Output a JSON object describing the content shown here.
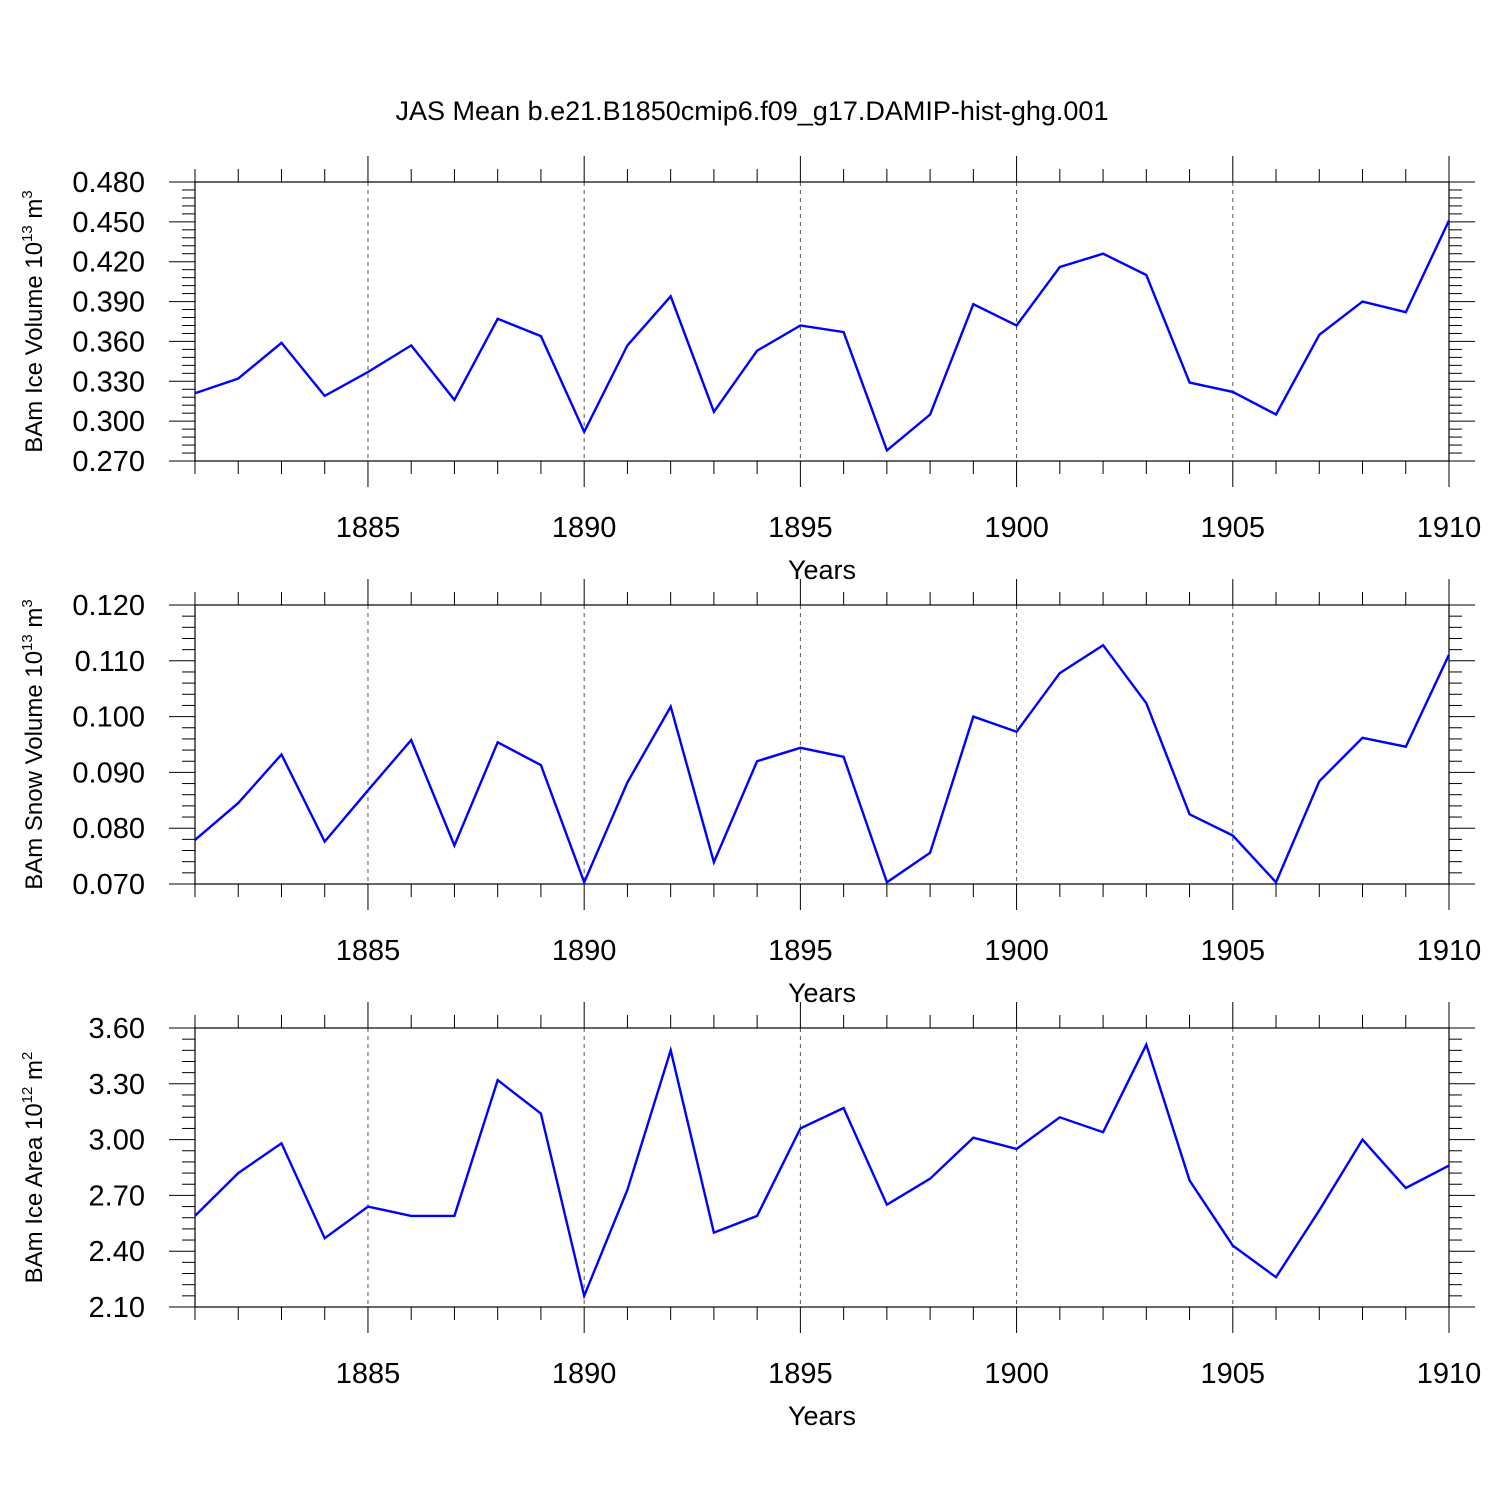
{
  "figure": {
    "title": "JAS Mean b.e21.B1850cmip6.f09_g17.DAMIP-hist-ghg.001",
    "line_color": "#0000ff",
    "grid_color": "#555555"
  },
  "chart_data": [
    {
      "type": "line",
      "ylabel_main": "BAm Ice Volume 10",
      "ylabel_exp": "13",
      "ylabel_unit": " m",
      "ylabel_unit_exp": "3",
      "xlabel": "Years",
      "xlim": [
        1881,
        1910
      ],
      "ylim": [
        0.27,
        0.48
      ],
      "yticks": [
        0.27,
        0.3,
        0.33,
        0.36,
        0.39,
        0.42,
        0.45,
        0.48
      ],
      "yticklabels": [
        "0.270",
        "0.300",
        "0.330",
        "0.360",
        "0.390",
        "0.420",
        "0.450",
        "0.480"
      ],
      "xticks": [
        1885,
        1890,
        1895,
        1900,
        1905,
        1910
      ],
      "xticklabels": [
        "1885",
        "1890",
        "1895",
        "1900",
        "1905",
        "1910"
      ],
      "grid": "vertical dashed at major x ticks",
      "x": [
        1881,
        1882,
        1883,
        1884,
        1885,
        1886,
        1887,
        1888,
        1889,
        1890,
        1891,
        1892,
        1893,
        1894,
        1895,
        1896,
        1897,
        1898,
        1899,
        1900,
        1901,
        1902,
        1903,
        1904,
        1905,
        1906,
        1907,
        1908,
        1909,
        1910
      ],
      "series": [
        {
          "values": [
            0.321,
            0.332,
            0.359,
            0.319,
            0.337,
            0.357,
            0.316,
            0.377,
            0.364,
            0.292,
            0.357,
            0.394,
            0.307,
            0.353,
            0.372,
            0.367,
            0.278,
            0.305,
            0.388,
            0.372,
            0.416,
            0.426,
            0.41,
            0.329,
            0.322,
            0.305,
            0.365,
            0.39,
            0.382,
            0.451
          ]
        }
      ]
    },
    {
      "type": "line",
      "ylabel_main": "BAm Snow Volume 10",
      "ylabel_exp": "13",
      "ylabel_unit": " m",
      "ylabel_unit_exp": "3",
      "xlabel": "Years",
      "xlim": [
        1881,
        1910
      ],
      "ylim": [
        0.07,
        0.12
      ],
      "yticks": [
        0.07,
        0.08,
        0.09,
        0.1,
        0.11,
        0.12
      ],
      "yticklabels": [
        "0.070",
        "0.080",
        "0.090",
        "0.100",
        "0.110",
        "0.120"
      ],
      "xticks": [
        1885,
        1890,
        1895,
        1900,
        1905,
        1910
      ],
      "xticklabels": [
        "1885",
        "1890",
        "1895",
        "1900",
        "1905",
        "1910"
      ],
      "grid": "vertical dashed at major x ticks",
      "x": [
        1881,
        1882,
        1883,
        1884,
        1885,
        1886,
        1887,
        1888,
        1889,
        1890,
        1891,
        1892,
        1893,
        1894,
        1895,
        1896,
        1897,
        1898,
        1899,
        1900,
        1901,
        1902,
        1903,
        1904,
        1905,
        1906,
        1907,
        1908,
        1909,
        1910
      ],
      "series": [
        {
          "values": [
            0.0779,
            0.0845,
            0.0932,
            0.0776,
            0.0868,
            0.0958,
            0.0769,
            0.0954,
            0.0913,
            0.0703,
            0.0882,
            0.1018,
            0.0739,
            0.092,
            0.0944,
            0.0928,
            0.0703,
            0.0756,
            0.1,
            0.0973,
            0.1078,
            0.1128,
            0.1024,
            0.0825,
            0.0787,
            0.0703,
            0.0884,
            0.0962,
            0.0946,
            0.1111
          ]
        }
      ]
    },
    {
      "type": "line",
      "ylabel_main": "BAm Ice Area 10",
      "ylabel_exp": "12",
      "ylabel_unit": " m",
      "ylabel_unit_exp": "2",
      "xlabel": "Years",
      "xlim": [
        1881,
        1910
      ],
      "ylim": [
        2.1,
        3.6
      ],
      "yticks": [
        2.1,
        2.4,
        2.7,
        3.0,
        3.3,
        3.6
      ],
      "yticklabels": [
        "2.10",
        "2.40",
        "2.70",
        "3.00",
        "3.30",
        "3.60"
      ],
      "xticks": [
        1885,
        1890,
        1895,
        1900,
        1905,
        1910
      ],
      "xticklabels": [
        "1885",
        "1890",
        "1895",
        "1900",
        "1905",
        "1910"
      ],
      "grid": "vertical dashed at major x ticks",
      "x": [
        1881,
        1882,
        1883,
        1884,
        1885,
        1886,
        1887,
        1888,
        1889,
        1890,
        1891,
        1892,
        1893,
        1894,
        1895,
        1896,
        1897,
        1898,
        1899,
        1900,
        1901,
        1902,
        1903,
        1904,
        1905,
        1906,
        1907,
        1908,
        1909,
        1910
      ],
      "series": [
        {
          "values": [
            2.59,
            2.82,
            2.98,
            2.47,
            2.64,
            2.59,
            2.59,
            3.32,
            3.14,
            2.16,
            2.73,
            3.48,
            2.5,
            2.59,
            3.06,
            3.17,
            2.65,
            2.79,
            3.01,
            2.95,
            3.12,
            3.04,
            3.51,
            2.78,
            2.43,
            2.26,
            2.62,
            3.0,
            2.74,
            2.86
          ]
        }
      ]
    }
  ]
}
